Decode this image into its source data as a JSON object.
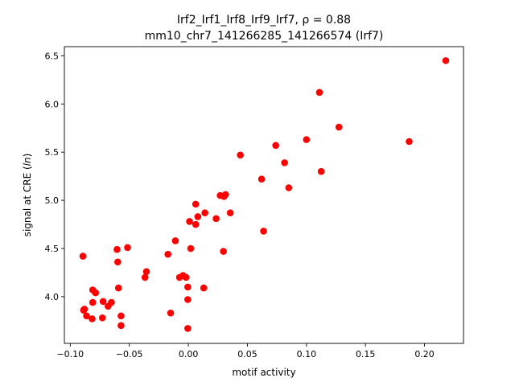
{
  "figure": {
    "title_line1": "Irf2_Irf1_Irf8_Irf9_Irf7, ρ = 0.88",
    "title_line2": "mm10_chr7_141266285_141266574 (Irf7)"
  },
  "chart_data": {
    "type": "scatter",
    "title": "Irf2_Irf1_Irf8_Irf9_Irf7, ρ = 0.88",
    "subtitle": "mm10_chr7_141266285_141266574 (Irf7)",
    "xlabel": "motif activity",
    "ylabel": "signal at CRE (ln)",
    "ylabel_prefix": "signal at CRE (",
    "ylabel_italic": "ln",
    "ylabel_suffix": ")",
    "xlim": [
      -0.105,
      0.233
    ],
    "ylim": [
      3.515,
      6.595
    ],
    "xticks": [
      -0.1,
      -0.05,
      0.0,
      0.05,
      0.1,
      0.15,
      0.2
    ],
    "xtick_labels": [
      "−0.10",
      "−0.05",
      "0.00",
      "0.05",
      "0.10",
      "0.15",
      "0.20"
    ],
    "yticks": [
      4.0,
      4.5,
      5.0,
      5.5,
      6.0,
      6.5
    ],
    "ytick_labels": [
      "4.0",
      "4.5",
      "5.0",
      "5.5",
      "6.0",
      "6.5"
    ],
    "grid": false,
    "marker_color": "#ff0000",
    "points": [
      {
        "x": -0.0893,
        "y": 4.42
      },
      {
        "x": -0.0887,
        "y": 3.86
      },
      {
        "x": -0.088,
        "y": 3.87
      },
      {
        "x": -0.0862,
        "y": 3.8
      },
      {
        "x": -0.0815,
        "y": 3.77
      },
      {
        "x": -0.081,
        "y": 4.07
      },
      {
        "x": -0.081,
        "y": 3.94
      },
      {
        "x": -0.0786,
        "y": 4.04
      },
      {
        "x": -0.0728,
        "y": 3.78
      },
      {
        "x": -0.0722,
        "y": 3.95
      },
      {
        "x": -0.068,
        "y": 3.9
      },
      {
        "x": -0.0652,
        "y": 3.94
      },
      {
        "x": -0.0604,
        "y": 4.49
      },
      {
        "x": -0.0598,
        "y": 4.36
      },
      {
        "x": -0.0592,
        "y": 4.09
      },
      {
        "x": -0.057,
        "y": 3.8
      },
      {
        "x": -0.057,
        "y": 3.7
      },
      {
        "x": -0.0515,
        "y": 4.51
      },
      {
        "x": -0.0367,
        "y": 4.2
      },
      {
        "x": -0.0355,
        "y": 4.26
      },
      {
        "x": -0.0173,
        "y": 4.44
      },
      {
        "x": -0.015,
        "y": 3.83
      },
      {
        "x": -0.011,
        "y": 4.58
      },
      {
        "x": -0.0075,
        "y": 4.2
      },
      {
        "x": -0.0045,
        "y": 4.22
      },
      {
        "x": -0.002,
        "y": 4.2
      },
      {
        "x": -0.0005,
        "y": 4.1
      },
      {
        "x": -0.0005,
        "y": 3.97
      },
      {
        "x": -0.0005,
        "y": 3.67
      },
      {
        "x": 0.001,
        "y": 4.78
      },
      {
        "x": 0.002,
        "y": 4.5
      },
      {
        "x": 0.0062,
        "y": 4.75
      },
      {
        "x": 0.0062,
        "y": 4.96
      },
      {
        "x": 0.008,
        "y": 4.83
      },
      {
        "x": 0.013,
        "y": 4.09
      },
      {
        "x": 0.014,
        "y": 4.87
      },
      {
        "x": 0.0235,
        "y": 4.81
      },
      {
        "x": 0.027,
        "y": 5.05
      },
      {
        "x": 0.0297,
        "y": 4.47
      },
      {
        "x": 0.0302,
        "y": 5.04
      },
      {
        "x": 0.0315,
        "y": 5.06
      },
      {
        "x": 0.0355,
        "y": 4.87
      },
      {
        "x": 0.044,
        "y": 5.47
      },
      {
        "x": 0.062,
        "y": 5.22
      },
      {
        "x": 0.0637,
        "y": 4.68
      },
      {
        "x": 0.074,
        "y": 5.57
      },
      {
        "x": 0.0815,
        "y": 5.39
      },
      {
        "x": 0.085,
        "y": 5.13
      },
      {
        "x": 0.1,
        "y": 5.63
      },
      {
        "x": 0.111,
        "y": 6.12
      },
      {
        "x": 0.1125,
        "y": 5.3
      },
      {
        "x": 0.1275,
        "y": 5.76
      },
      {
        "x": 0.187,
        "y": 5.61
      },
      {
        "x": 0.218,
        "y": 6.45
      }
    ]
  }
}
